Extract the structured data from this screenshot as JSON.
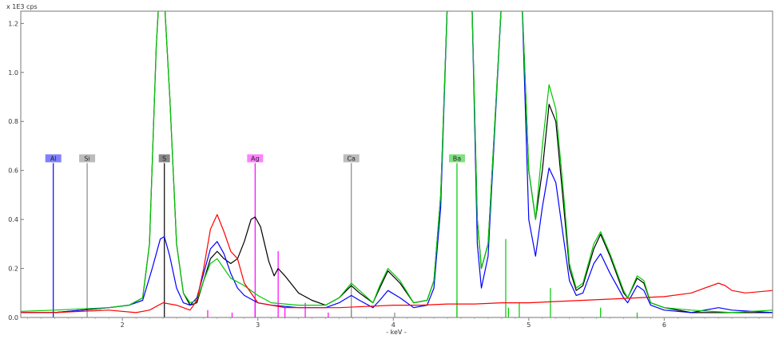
{
  "chart_data": {
    "type": "line",
    "ylabel": "x 1E3 cps",
    "xlabel": "- keV -",
    "xlim": [
      1.25,
      6.8
    ],
    "ylim": [
      0,
      1.25
    ],
    "xticks": [
      "2",
      "3",
      "4",
      "5",
      "6"
    ],
    "xtick_values": [
      2,
      3,
      4,
      5,
      6
    ],
    "yticks": [
      "0.0",
      "0.2",
      "0.4",
      "0.6",
      "0.8",
      "1.0",
      "1.2"
    ],
    "ytick_values": [
      0.0,
      0.2,
      0.4,
      0.6,
      0.8,
      1.0,
      1.2
    ],
    "grid": false,
    "series": [
      {
        "color": "#000000",
        "points": [
          [
            1.25,
            0.02
          ],
          [
            1.5,
            0.02
          ],
          [
            1.7,
            0.03
          ],
          [
            1.9,
            0.04
          ],
          [
            2.05,
            0.05
          ],
          [
            2.15,
            0.08
          ],
          [
            2.2,
            0.3
          ],
          [
            2.25,
            1.1
          ],
          [
            2.27,
            1.3
          ],
          [
            2.31,
            1.3
          ],
          [
            2.35,
            0.9
          ],
          [
            2.4,
            0.3
          ],
          [
            2.45,
            0.1
          ],
          [
            2.5,
            0.05
          ],
          [
            2.55,
            0.06
          ],
          [
            2.6,
            0.15
          ],
          [
            2.65,
            0.24
          ],
          [
            2.7,
            0.27
          ],
          [
            2.75,
            0.24
          ],
          [
            2.8,
            0.22
          ],
          [
            2.85,
            0.24
          ],
          [
            2.9,
            0.31
          ],
          [
            2.95,
            0.4
          ],
          [
            2.98,
            0.41
          ],
          [
            3.02,
            0.37
          ],
          [
            3.08,
            0.23
          ],
          [
            3.12,
            0.17
          ],
          [
            3.15,
            0.2
          ],
          [
            3.2,
            0.17
          ],
          [
            3.3,
            0.1
          ],
          [
            3.4,
            0.07
          ],
          [
            3.5,
            0.05
          ],
          [
            3.6,
            0.08
          ],
          [
            3.69,
            0.13
          ],
          [
            3.75,
            0.1
          ],
          [
            3.85,
            0.06
          ],
          [
            3.9,
            0.12
          ],
          [
            3.96,
            0.19
          ],
          [
            4.05,
            0.14
          ],
          [
            4.15,
            0.06
          ],
          [
            4.25,
            0.07
          ],
          [
            4.3,
            0.15
          ],
          [
            4.35,
            0.5
          ],
          [
            4.4,
            1.3
          ],
          [
            4.58,
            1.3
          ],
          [
            4.62,
            0.4
          ],
          [
            4.65,
            0.2
          ],
          [
            4.7,
            0.3
          ],
          [
            4.8,
            1.3
          ],
          [
            4.95,
            1.3
          ],
          [
            5.0,
            0.6
          ],
          [
            5.05,
            0.4
          ],
          [
            5.1,
            0.6
          ],
          [
            5.15,
            0.87
          ],
          [
            5.2,
            0.8
          ],
          [
            5.25,
            0.5
          ],
          [
            5.3,
            0.2
          ],
          [
            5.35,
            0.11
          ],
          [
            5.4,
            0.13
          ],
          [
            5.48,
            0.28
          ],
          [
            5.53,
            0.34
          ],
          [
            5.6,
            0.25
          ],
          [
            5.7,
            0.1
          ],
          [
            5.73,
            0.08
          ],
          [
            5.8,
            0.16
          ],
          [
            5.85,
            0.14
          ],
          [
            5.9,
            0.06
          ],
          [
            6.0,
            0.04
          ],
          [
            6.2,
            0.02
          ],
          [
            6.5,
            0.02
          ],
          [
            6.8,
            0.02
          ]
        ]
      },
      {
        "color": "#0000ff",
        "points": [
          [
            1.25,
            0.02
          ],
          [
            1.5,
            0.02
          ],
          [
            1.7,
            0.03
          ],
          [
            1.9,
            0.04
          ],
          [
            2.05,
            0.05
          ],
          [
            2.15,
            0.07
          ],
          [
            2.22,
            0.2
          ],
          [
            2.28,
            0.32
          ],
          [
            2.31,
            0.33
          ],
          [
            2.35,
            0.25
          ],
          [
            2.4,
            0.12
          ],
          [
            2.45,
            0.06
          ],
          [
            2.5,
            0.05
          ],
          [
            2.55,
            0.08
          ],
          [
            2.6,
            0.18
          ],
          [
            2.65,
            0.28
          ],
          [
            2.7,
            0.31
          ],
          [
            2.75,
            0.26
          ],
          [
            2.8,
            0.18
          ],
          [
            2.85,
            0.12
          ],
          [
            2.9,
            0.09
          ],
          [
            3.0,
            0.06
          ],
          [
            3.1,
            0.05
          ],
          [
            3.3,
            0.04
          ],
          [
            3.5,
            0.04
          ],
          [
            3.6,
            0.06
          ],
          [
            3.69,
            0.09
          ],
          [
            3.75,
            0.07
          ],
          [
            3.85,
            0.04
          ],
          [
            3.9,
            0.07
          ],
          [
            3.96,
            0.11
          ],
          [
            4.05,
            0.08
          ],
          [
            4.15,
            0.04
          ],
          [
            4.25,
            0.05
          ],
          [
            4.3,
            0.12
          ],
          [
            4.35,
            0.45
          ],
          [
            4.4,
            1.3
          ],
          [
            4.58,
            1.3
          ],
          [
            4.62,
            0.3
          ],
          [
            4.65,
            0.12
          ],
          [
            4.7,
            0.25
          ],
          [
            4.8,
            1.3
          ],
          [
            4.95,
            1.3
          ],
          [
            5.0,
            0.4
          ],
          [
            5.05,
            0.25
          ],
          [
            5.1,
            0.45
          ],
          [
            5.15,
            0.61
          ],
          [
            5.2,
            0.55
          ],
          [
            5.25,
            0.35
          ],
          [
            5.3,
            0.15
          ],
          [
            5.35,
            0.09
          ],
          [
            5.4,
            0.1
          ],
          [
            5.48,
            0.22
          ],
          [
            5.53,
            0.26
          ],
          [
            5.6,
            0.18
          ],
          [
            5.7,
            0.08
          ],
          [
            5.73,
            0.06
          ],
          [
            5.8,
            0.13
          ],
          [
            5.85,
            0.11
          ],
          [
            5.9,
            0.05
          ],
          [
            6.0,
            0.03
          ],
          [
            6.2,
            0.02
          ],
          [
            6.4,
            0.04
          ],
          [
            6.5,
            0.03
          ],
          [
            6.8,
            0.02
          ]
        ]
      },
      {
        "color": "#00c800",
        "points": [
          [
            1.25,
            0.025
          ],
          [
            1.5,
            0.03
          ],
          [
            1.7,
            0.035
          ],
          [
            1.9,
            0.04
          ],
          [
            2.05,
            0.05
          ],
          [
            2.15,
            0.08
          ],
          [
            2.2,
            0.3
          ],
          [
            2.25,
            1.1
          ],
          [
            2.27,
            1.3
          ],
          [
            2.31,
            1.3
          ],
          [
            2.35,
            0.9
          ],
          [
            2.4,
            0.3
          ],
          [
            2.45,
            0.1
          ],
          [
            2.5,
            0.06
          ],
          [
            2.55,
            0.07
          ],
          [
            2.6,
            0.15
          ],
          [
            2.65,
            0.22
          ],
          [
            2.7,
            0.24
          ],
          [
            2.75,
            0.2
          ],
          [
            2.8,
            0.16
          ],
          [
            2.9,
            0.13
          ],
          [
            3.0,
            0.09
          ],
          [
            3.1,
            0.06
          ],
          [
            3.3,
            0.05
          ],
          [
            3.5,
            0.05
          ],
          [
            3.6,
            0.08
          ],
          [
            3.69,
            0.14
          ],
          [
            3.75,
            0.11
          ],
          [
            3.85,
            0.06
          ],
          [
            3.9,
            0.13
          ],
          [
            3.96,
            0.2
          ],
          [
            4.05,
            0.15
          ],
          [
            4.15,
            0.06
          ],
          [
            4.25,
            0.07
          ],
          [
            4.3,
            0.15
          ],
          [
            4.35,
            0.5
          ],
          [
            4.4,
            1.3
          ],
          [
            4.58,
            1.3
          ],
          [
            4.62,
            0.4
          ],
          [
            4.65,
            0.2
          ],
          [
            4.7,
            0.3
          ],
          [
            4.8,
            1.3
          ],
          [
            4.95,
            1.3
          ],
          [
            5.0,
            0.6
          ],
          [
            5.05,
            0.4
          ],
          [
            5.1,
            0.7
          ],
          [
            5.15,
            0.95
          ],
          [
            5.2,
            0.85
          ],
          [
            5.25,
            0.55
          ],
          [
            5.3,
            0.22
          ],
          [
            5.35,
            0.12
          ],
          [
            5.4,
            0.14
          ],
          [
            5.48,
            0.3
          ],
          [
            5.53,
            0.35
          ],
          [
            5.6,
            0.26
          ],
          [
            5.7,
            0.11
          ],
          [
            5.73,
            0.08
          ],
          [
            5.8,
            0.17
          ],
          [
            5.85,
            0.15
          ],
          [
            5.9,
            0.06
          ],
          [
            6.0,
            0.04
          ],
          [
            6.2,
            0.03
          ],
          [
            6.5,
            0.02
          ],
          [
            6.8,
            0.03
          ]
        ]
      },
      {
        "color": "#ff0000",
        "points": [
          [
            1.25,
            0.02
          ],
          [
            1.5,
            0.02
          ],
          [
            1.7,
            0.025
          ],
          [
            1.9,
            0.03
          ],
          [
            2.1,
            0.02
          ],
          [
            2.2,
            0.03
          ],
          [
            2.3,
            0.06
          ],
          [
            2.4,
            0.05
          ],
          [
            2.5,
            0.03
          ],
          [
            2.55,
            0.07
          ],
          [
            2.6,
            0.2
          ],
          [
            2.65,
            0.36
          ],
          [
            2.7,
            0.42
          ],
          [
            2.75,
            0.35
          ],
          [
            2.8,
            0.27
          ],
          [
            2.85,
            0.24
          ],
          [
            2.9,
            0.14
          ],
          [
            3.0,
            0.06
          ],
          [
            3.2,
            0.04
          ],
          [
            3.4,
            0.04
          ],
          [
            3.6,
            0.04
          ],
          [
            3.8,
            0.045
          ],
          [
            4.0,
            0.05
          ],
          [
            4.2,
            0.05
          ],
          [
            4.4,
            0.055
          ],
          [
            4.6,
            0.055
          ],
          [
            4.8,
            0.06
          ],
          [
            5.0,
            0.06
          ],
          [
            5.2,
            0.065
          ],
          [
            5.4,
            0.07
          ],
          [
            5.6,
            0.075
          ],
          [
            5.8,
            0.08
          ],
          [
            6.0,
            0.085
          ],
          [
            6.2,
            0.1
          ],
          [
            6.3,
            0.12
          ],
          [
            6.4,
            0.14
          ],
          [
            6.45,
            0.13
          ],
          [
            6.5,
            0.11
          ],
          [
            6.6,
            0.1
          ],
          [
            6.8,
            0.11
          ]
        ]
      }
    ],
    "element_markers": [
      {
        "label": "Al",
        "x": 1.49,
        "height": 0.63,
        "tag_color": "#8080ff",
        "line_color": "#0000ff"
      },
      {
        "label": "Si",
        "x": 1.74,
        "height": 0.63,
        "tag_color": "#bbbbbb",
        "line_color": "#888888"
      },
      {
        "label": "S",
        "x": 2.31,
        "height": 0.63,
        "tag_color": "#888888",
        "line_color": "#000000"
      },
      {
        "label": "Ag",
        "x": 2.98,
        "height": 0.63,
        "tag_color": "#ff80ff",
        "line_color": "#ff00ff"
      },
      {
        "label": "Ca",
        "x": 3.69,
        "height": 0.63,
        "tag_color": "#bbbbbb",
        "line_color": "#888888"
      },
      {
        "label": "Ba",
        "x": 4.47,
        "height": 0.63,
        "tag_color": "#80e080",
        "line_color": "#00c800"
      }
    ],
    "stick_lines": [
      {
        "x": 2.63,
        "height": 0.03,
        "color": "#ff00ff"
      },
      {
        "x": 2.81,
        "height": 0.02,
        "color": "#ff00ff"
      },
      {
        "x": 2.98,
        "height": 0.08,
        "color": "#ff00ff"
      },
      {
        "x": 3.15,
        "height": 0.27,
        "color": "#ff00ff"
      },
      {
        "x": 3.2,
        "height": 0.04,
        "color": "#ff00ff"
      },
      {
        "x": 3.35,
        "height": 0.06,
        "color": "#ff00ff"
      },
      {
        "x": 3.52,
        "height": 0.02,
        "color": "#ff00ff"
      },
      {
        "x": 3.69,
        "height": 0.03,
        "color": "#888888"
      },
      {
        "x": 4.01,
        "height": 0.02,
        "color": "#888888"
      },
      {
        "x": 4.47,
        "height": 0.07,
        "color": "#00c800"
      },
      {
        "x": 4.83,
        "height": 0.32,
        "color": "#00c800"
      },
      {
        "x": 4.85,
        "height": 0.04,
        "color": "#00c800"
      },
      {
        "x": 4.93,
        "height": 0.06,
        "color": "#00c800"
      },
      {
        "x": 5.16,
        "height": 0.12,
        "color": "#00c800"
      },
      {
        "x": 5.53,
        "height": 0.04,
        "color": "#00c800"
      },
      {
        "x": 5.8,
        "height": 0.02,
        "color": "#00c800"
      }
    ]
  }
}
